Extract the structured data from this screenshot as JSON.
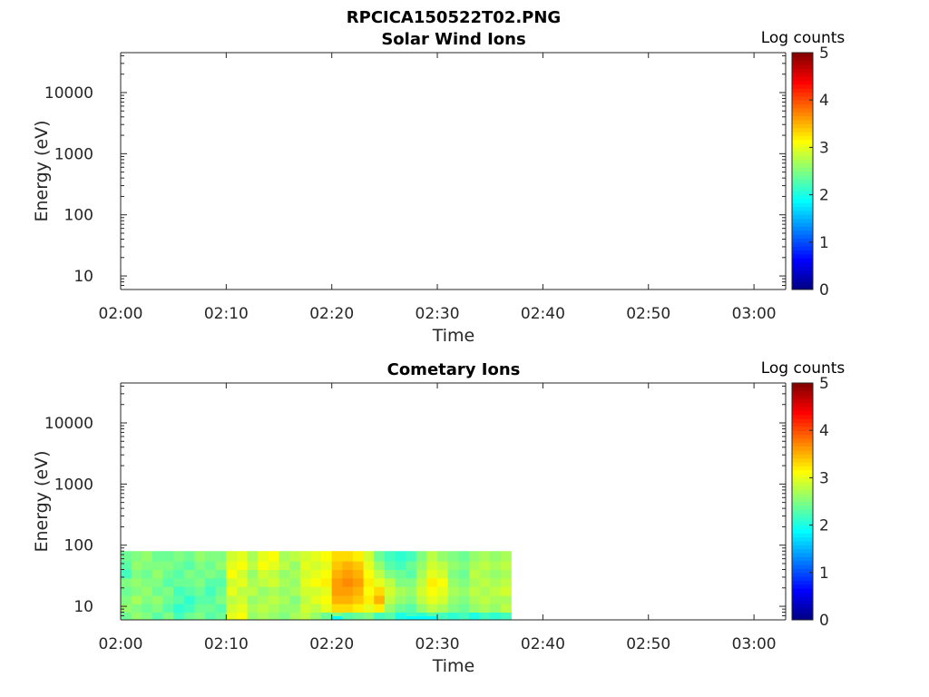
{
  "figure": {
    "title": "RPCICA150522T02.PNG"
  },
  "chart_data": [
    {
      "type": "heatmap",
      "title": "Solar Wind Ions",
      "xlabel": "Time",
      "ylabel": "Energy (eV)",
      "y_scale": "log",
      "xlim": [
        "02:00",
        "03:03"
      ],
      "ylim": [
        6,
        45000
      ],
      "x_ticks": [
        "02:00",
        "02:10",
        "02:20",
        "02:30",
        "02:40",
        "02:50",
        "03:00"
      ],
      "y_ticks": [
        "10",
        "100",
        "1000",
        "10000"
      ],
      "colorbar": {
        "label": "Log counts",
        "range": [
          0,
          5
        ],
        "ticks": [
          "0",
          "1",
          "2",
          "3",
          "4",
          "5"
        ],
        "colormap": "jet"
      },
      "cells": []
    },
    {
      "type": "heatmap",
      "title": "Cometary Ions",
      "xlabel": "Time",
      "ylabel": "Energy (eV)",
      "y_scale": "log",
      "xlim": [
        "02:00",
        "03:03"
      ],
      "ylim": [
        6,
        45000
      ],
      "x_ticks": [
        "02:00",
        "02:10",
        "02:20",
        "02:30",
        "02:40",
        "02:50",
        "03:00"
      ],
      "y_ticks": [
        "10",
        "100",
        "1000",
        "10000"
      ],
      "colorbar": {
        "label": "Log counts",
        "range": [
          0,
          5
        ],
        "ticks": [
          "0",
          "1",
          "2",
          "3",
          "4",
          "5"
        ],
        "colormap": "jet"
      },
      "time_bins": [
        "02:00",
        "02:01",
        "02:02",
        "02:03",
        "02:04",
        "02:05",
        "02:06",
        "02:07",
        "02:08",
        "02:09",
        "02:10",
        "02:11",
        "02:12",
        "02:13",
        "02:14",
        "02:15",
        "02:16",
        "02:17",
        "02:18",
        "02:19",
        "02:20",
        "02:21",
        "02:22",
        "02:23",
        "02:24",
        "02:25",
        "02:26",
        "02:27",
        "02:28",
        "02:29",
        "02:30",
        "02:31",
        "02:32",
        "02:33",
        "02:34",
        "02:35",
        "02:36",
        "02:37"
      ],
      "energy_bins": [
        6,
        8,
        11,
        15,
        21,
        29,
        40,
        55,
        80
      ],
      "log_counts": [
        [
          2.4,
          2.6,
          2.5,
          2.4,
          2.5,
          2.2,
          2.3,
          2.4
        ],
        [
          2.6,
          2.5,
          2.7,
          2.5,
          2.6,
          2.5,
          2.6,
          2.5
        ],
        [
          2.5,
          2.4,
          2.5,
          2.6,
          2.5,
          2.4,
          2.5,
          2.6
        ],
        [
          2.3,
          2.5,
          2.6,
          2.4,
          2.5,
          2.6,
          2.5,
          2.4
        ],
        [
          2.5,
          2.3,
          2.4,
          2.5,
          2.3,
          2.4,
          2.5,
          2.4
        ],
        [
          2.2,
          2.1,
          2.3,
          2.2,
          2.4,
          2.3,
          2.4,
          2.5
        ],
        [
          2.4,
          2.2,
          2.1,
          2.3,
          2.4,
          2.5,
          2.3,
          2.4
        ],
        [
          2.5,
          2.4,
          2.3,
          2.4,
          2.5,
          2.4,
          2.5,
          2.6
        ],
        [
          2.3,
          2.4,
          2.3,
          2.2,
          2.3,
          2.5,
          2.4,
          2.5
        ],
        [
          2.4,
          2.3,
          2.5,
          2.4,
          2.3,
          2.4,
          2.6,
          2.5
        ],
        [
          3.0,
          2.9,
          2.8,
          3.0,
          2.9,
          3.1,
          3.0,
          2.9
        ],
        [
          3.1,
          3.0,
          2.9,
          2.8,
          3.0,
          2.9,
          3.1,
          3.0
        ],
        [
          2.6,
          2.7,
          2.6,
          2.8,
          2.7,
          2.6,
          2.8,
          2.7
        ],
        [
          2.7,
          2.8,
          2.7,
          2.6,
          2.8,
          2.9,
          3.1,
          3.0
        ],
        [
          2.6,
          2.7,
          2.8,
          2.7,
          2.9,
          2.8,
          3.0,
          3.1
        ],
        [
          2.5,
          2.6,
          2.7,
          2.6,
          2.7,
          2.6,
          2.8,
          2.7
        ],
        [
          2.7,
          2.6,
          2.5,
          2.7,
          2.6,
          2.7,
          2.6,
          2.8
        ],
        [
          2.8,
          2.9,
          2.8,
          2.9,
          3.0,
          2.9,
          3.0,
          2.9
        ],
        [
          2.6,
          2.8,
          3.0,
          2.9,
          3.1,
          3.0,
          2.9,
          3.0
        ],
        [
          2.4,
          3.0,
          3.1,
          3.0,
          3.2,
          3.1,
          3.0,
          3.1
        ],
        [
          2.5,
          3.3,
          3.5,
          3.6,
          3.6,
          3.5,
          3.4,
          3.3
        ],
        [
          2.3,
          3.3,
          3.5,
          3.6,
          3.7,
          3.6,
          3.5,
          3.3
        ],
        [
          2.4,
          3.2,
          3.4,
          3.5,
          3.6,
          3.5,
          3.4,
          3.2
        ],
        [
          2.5,
          3.0,
          3.2,
          3.1,
          3.2,
          3.1,
          3.0,
          2.9
        ],
        [
          2.2,
          3.2,
          3.5,
          3.3,
          3.0,
          2.8,
          2.6,
          2.4
        ],
        [
          2.3,
          2.6,
          2.8,
          2.9,
          2.8,
          2.5,
          2.3,
          2.2
        ],
        [
          2.0,
          2.4,
          2.6,
          2.7,
          2.5,
          2.4,
          2.2,
          2.1
        ],
        [
          2.2,
          2.3,
          2.5,
          2.6,
          2.5,
          2.3,
          2.4,
          2.2
        ],
        [
          2.1,
          2.6,
          2.8,
          2.9,
          2.8,
          2.7,
          2.6,
          2.5
        ],
        [
          2.3,
          2.8,
          3.0,
          3.1,
          3.2,
          3.0,
          2.9,
          2.8
        ],
        [
          2.2,
          2.7,
          2.9,
          3.0,
          3.1,
          2.9,
          2.8,
          2.6
        ],
        [
          2.1,
          2.5,
          2.6,
          2.7,
          2.6,
          2.5,
          2.6,
          2.5
        ],
        [
          2.2,
          2.4,
          2.5,
          2.6,
          2.5,
          2.4,
          2.5,
          2.4
        ],
        [
          2.0,
          2.6,
          2.7,
          2.8,
          2.7,
          2.8,
          2.7,
          2.6
        ],
        [
          2.2,
          2.7,
          2.8,
          2.7,
          2.8,
          2.7,
          2.8,
          2.7
        ],
        [
          2.1,
          2.6,
          2.7,
          2.8,
          2.7,
          2.6,
          2.7,
          2.6
        ],
        [
          2.2,
          2.8,
          2.7,
          2.9,
          2.8,
          2.7,
          2.8,
          2.7
        ]
      ]
    }
  ]
}
